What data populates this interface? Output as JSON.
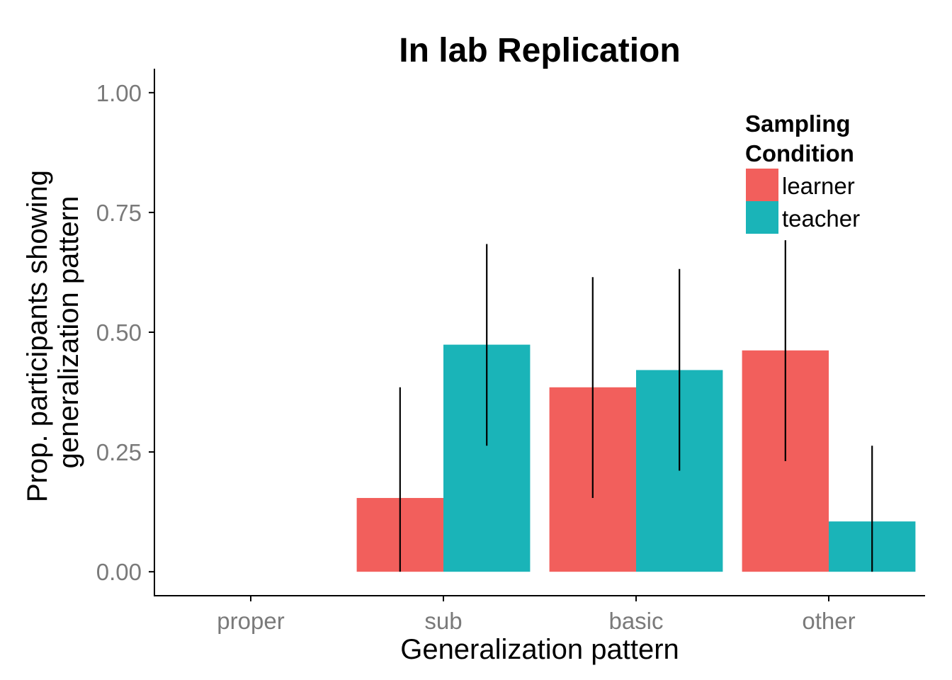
{
  "chart_data": {
    "type": "bar",
    "title": "In lab Replication",
    "xlabel": "Generalization pattern",
    "ylabel_lines": [
      "Prop. participants showing",
      "generalization pattern"
    ],
    "categories": [
      "proper",
      "sub",
      "basic",
      "other"
    ],
    "ylim": [
      -0.05,
      1.05
    ],
    "yticks": [
      0,
      0.25,
      0.5,
      0.75,
      1.0
    ],
    "ytick_labels": [
      "0.00",
      "0.25",
      "0.50",
      "0.75",
      "1.00"
    ],
    "grid": false,
    "legend": {
      "title_lines": [
        "Sampling",
        "Condition"
      ],
      "placement": "top-right"
    },
    "series": [
      {
        "name": "learner",
        "color": "#F25F5C",
        "values": [
          null,
          0.154,
          0.385,
          0.462
        ],
        "error_low": [
          null,
          0.0,
          0.154,
          0.231
        ],
        "error_high": [
          null,
          0.385,
          0.615,
          0.692
        ]
      },
      {
        "name": "teacher",
        "color": "#1AB4B8",
        "values": [
          null,
          0.474,
          0.421,
          0.105
        ],
        "error_low": [
          null,
          0.263,
          0.211,
          0.0
        ],
        "error_high": [
          null,
          0.684,
          0.632,
          0.263
        ]
      }
    ]
  }
}
